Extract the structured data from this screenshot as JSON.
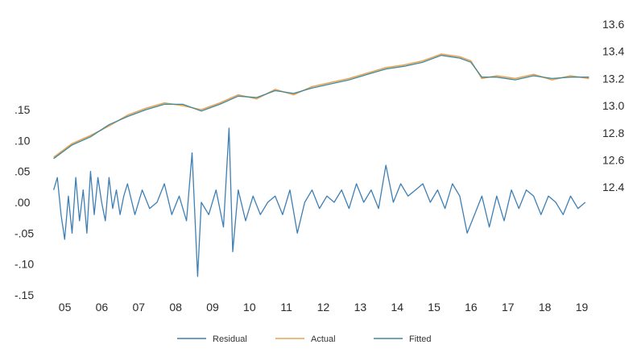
{
  "chart_data": {
    "type": "line",
    "title": "",
    "xlabel": "",
    "left_axis": {
      "ticks": [
        0.15,
        0.1,
        0.05,
        0.0,
        -0.05,
        -0.1,
        -0.15
      ],
      "tick_labels": [
        ".15",
        ".10",
        ".05",
        ".00",
        "-.05",
        "-.10",
        "-.15"
      ],
      "ylim": [
        -0.15,
        0.15
      ]
    },
    "right_axis": {
      "ticks": [
        13.6,
        13.4,
        13.2,
        13.0,
        12.8,
        12.6,
        12.4
      ],
      "tick_labels": [
        "13.6",
        "13.4",
        "13.2",
        "13.0",
        "12.8",
        "12.6",
        "12.4"
      ],
      "ylim": [
        12.3,
        13.6
      ]
    },
    "x_categories": [
      "05",
      "06",
      "07",
      "08",
      "09",
      "10",
      "11",
      "12",
      "13",
      "14",
      "15",
      "16",
      "17",
      "18",
      "19"
    ],
    "xlim": [
      2004.9,
      2019.6
    ],
    "grid": false,
    "legend_position": "bottom-center",
    "series": [
      {
        "name": "Residual",
        "axis": "left",
        "color": "#3d7fb5",
        "x": [
          2005.0,
          2005.1,
          2005.2,
          2005.3,
          2005.4,
          2005.5,
          2005.6,
          2005.7,
          2005.8,
          2005.9,
          2006.0,
          2006.1,
          2006.2,
          2006.3,
          2006.4,
          2006.5,
          2006.6,
          2006.7,
          2006.8,
          2006.9,
          2007.0,
          2007.2,
          2007.4,
          2007.6,
          2007.8,
          2008.0,
          2008.2,
          2008.4,
          2008.6,
          2008.75,
          2008.9,
          2009.0,
          2009.2,
          2009.4,
          2009.6,
          2009.75,
          2009.85,
          2010.0,
          2010.2,
          2010.4,
          2010.6,
          2010.8,
          2011.0,
          2011.2,
          2011.4,
          2011.6,
          2011.8,
          2012.0,
          2012.2,
          2012.4,
          2012.6,
          2012.8,
          2013.0,
          2013.2,
          2013.4,
          2013.6,
          2013.8,
          2014.0,
          2014.2,
          2014.4,
          2014.6,
          2014.8,
          2015.0,
          2015.2,
          2015.4,
          2015.6,
          2015.8,
          2016.0,
          2016.2,
          2016.4,
          2016.6,
          2016.8,
          2017.0,
          2017.2,
          2017.4,
          2017.6,
          2017.8,
          2018.0,
          2018.2,
          2018.4,
          2018.6,
          2018.8,
          2019.0,
          2019.2,
          2019.4
        ],
        "y": [
          0.02,
          0.04,
          -0.02,
          -0.06,
          0.01,
          -0.05,
          0.04,
          -0.03,
          0.02,
          -0.05,
          0.05,
          -0.02,
          0.04,
          0.0,
          -0.03,
          0.04,
          -0.01,
          0.02,
          -0.02,
          0.01,
          0.03,
          -0.02,
          0.02,
          -0.01,
          0.0,
          0.03,
          -0.02,
          0.01,
          -0.03,
          0.08,
          -0.12,
          0.0,
          -0.02,
          0.02,
          -0.04,
          0.12,
          -0.08,
          0.02,
          -0.03,
          0.01,
          -0.02,
          0.0,
          0.01,
          -0.02,
          0.02,
          -0.05,
          0.0,
          0.02,
          -0.01,
          0.01,
          0.0,
          0.02,
          -0.01,
          0.03,
          0.0,
          0.02,
          -0.01,
          0.06,
          0.0,
          0.03,
          0.01,
          0.02,
          0.03,
          0.0,
          0.02,
          -0.01,
          0.03,
          0.01,
          -0.05,
          -0.02,
          0.01,
          -0.04,
          0.01,
          -0.03,
          0.02,
          -0.01,
          0.02,
          0.01,
          -0.02,
          0.01,
          0.0,
          -0.02,
          0.01,
          -0.01,
          0.0
        ]
      },
      {
        "name": "Actual",
        "axis": "right",
        "color": "#e8a35a",
        "x": [
          2005.0,
          2005.5,
          2006.0,
          2006.5,
          2007.0,
          2007.5,
          2008.0,
          2008.5,
          2009.0,
          2009.5,
          2010.0,
          2010.5,
          2011.0,
          2011.5,
          2012.0,
          2012.5,
          2013.0,
          2013.5,
          2014.0,
          2014.5,
          2015.0,
          2015.5,
          2016.0,
          2016.3,
          2016.6,
          2017.0,
          2017.5,
          2018.0,
          2018.5,
          2019.0,
          2019.5
        ],
        "y": [
          12.62,
          12.72,
          12.78,
          12.85,
          12.93,
          12.98,
          13.02,
          13.0,
          12.97,
          13.02,
          13.08,
          13.05,
          13.12,
          13.08,
          13.14,
          13.17,
          13.2,
          13.24,
          13.28,
          13.3,
          13.33,
          13.38,
          13.36,
          13.33,
          13.2,
          13.22,
          13.2,
          13.23,
          13.19,
          13.22,
          13.2
        ]
      },
      {
        "name": "Fitted",
        "axis": "right",
        "color": "#3d8a9a",
        "x": [
          2005.0,
          2005.5,
          2006.0,
          2006.5,
          2007.0,
          2007.5,
          2008.0,
          2008.5,
          2009.0,
          2009.5,
          2010.0,
          2010.5,
          2011.0,
          2011.5,
          2012.0,
          2012.5,
          2013.0,
          2013.5,
          2014.0,
          2014.5,
          2015.0,
          2015.5,
          2016.0,
          2016.3,
          2016.6,
          2017.0,
          2017.5,
          2018.0,
          2018.5,
          2019.0,
          2019.5
        ],
        "y": [
          12.61,
          12.71,
          12.77,
          12.86,
          12.92,
          12.97,
          13.01,
          13.01,
          12.96,
          13.01,
          13.07,
          13.06,
          13.11,
          13.09,
          13.13,
          13.16,
          13.19,
          13.23,
          13.27,
          13.29,
          13.32,
          13.37,
          13.35,
          13.32,
          13.21,
          13.21,
          13.19,
          13.22,
          13.2,
          13.21,
          13.21
        ]
      }
    ]
  }
}
